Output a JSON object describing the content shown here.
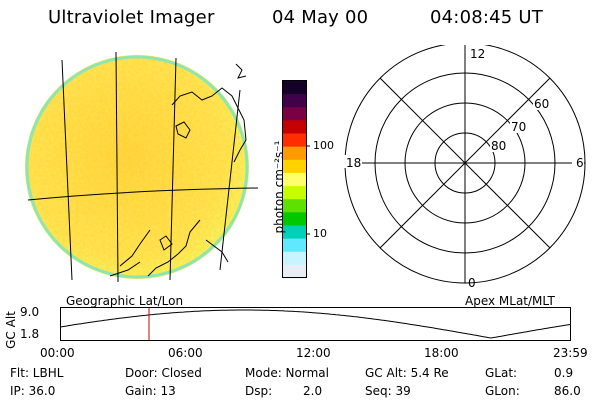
{
  "header": {
    "instrument": "Ultraviolet Imager",
    "date": "04 May 00",
    "time": "04:08:45 UT"
  },
  "colorbar": {
    "unit_label": "photon cm⁻²s⁻¹",
    "tick_100": "100",
    "tick_10": "10",
    "colors_top_to_bottom": [
      "#140028",
      "#40004a",
      "#7a0044",
      "#c60000",
      "#ff2d00",
      "#ff9a00",
      "#ffd200",
      "#ffff6e",
      "#c8ff00",
      "#5ee000",
      "#00c800",
      "#00d0b8",
      "#60e8ff",
      "#c8f4ff",
      "#e8eef4"
    ]
  },
  "left_panel": {
    "caption": "Geographic Lat/Lon"
  },
  "right_panel": {
    "caption": "Apex MLat/MLT",
    "labels": {
      "top": "12",
      "left": "18",
      "right": "6",
      "bottom": "0",
      "r60": "60",
      "r70": "70",
      "r80": "80"
    }
  },
  "altitude_plot": {
    "ylabel": "GC Alt",
    "y_ticks": [
      "9.0",
      "1.8"
    ],
    "x_ticks": [
      "00:00",
      "06:00",
      "12:00",
      "18:00",
      "23:59"
    ],
    "marker_time_hours": 4.15,
    "marker_color": "#cc0000"
  },
  "info": {
    "row1": {
      "flt": "Flt: LBHL",
      "door": "Door: Closed",
      "mode": "Mode: Normal",
      "gcalt": "GC Alt: 5.4 Re",
      "glat_label": "GLat:",
      "glat_value": "0.9"
    },
    "row2": {
      "ip": "IP: 36.0",
      "gain": "Gain: 13",
      "dsp_label": "Dsp:",
      "dsp_value": "2.0",
      "seq": "Seq: 39",
      "glon_label": "GLon:",
      "glon_value": "86.0"
    }
  }
}
